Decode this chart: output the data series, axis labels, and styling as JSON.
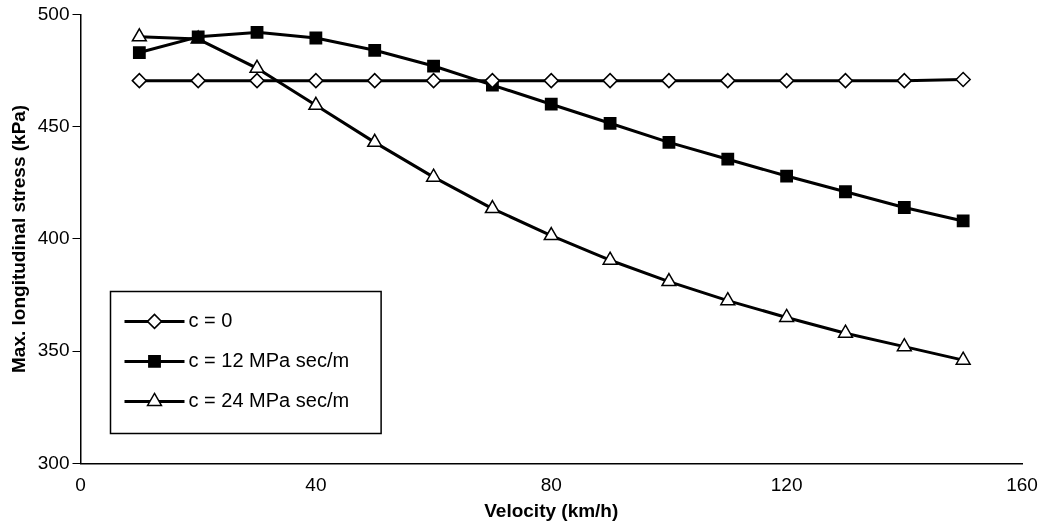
{
  "chart_data": {
    "type": "line",
    "xlabel": "Velocity (km/h)",
    "ylabel": "Max. longitudinal stress (kPa)",
    "x": [
      10,
      20,
      30,
      40,
      50,
      60,
      70,
      80,
      90,
      100,
      110,
      120,
      130,
      140,
      150
    ],
    "xlim": [
      0,
      160
    ],
    "xticks": [
      0,
      40,
      80,
      120,
      160
    ],
    "ylim": [
      300,
      500
    ],
    "yticks": [
      300,
      350,
      400,
      450,
      500
    ],
    "grid": false,
    "legend": "bottom left",
    "line_style": "solid",
    "series": [
      {
        "name": "c = 0",
        "color": "#000000",
        "marker": "diamond",
        "values": [
          470.5,
          470.5,
          470.5,
          470.5,
          470.5,
          470.5,
          470.5,
          470.5,
          470.5,
          470.5,
          470.5,
          470.5,
          470.5,
          470.5,
          471
        ]
      },
      {
        "name": "c = 12 MPa sec/m",
        "color": "#000000",
        "marker": "square",
        "values": [
          483,
          490,
          492,
          489.5,
          484,
          477,
          468.5,
          460,
          451.5,
          443,
          435.5,
          428,
          421,
          414,
          408
        ]
      },
      {
        "name": "c = 24 MPa sec/m",
        "color": "#000000",
        "marker": "triangle",
        "values": [
          490,
          489,
          476,
          459.5,
          443,
          427.5,
          413.5,
          401.5,
          390.5,
          381,
          372.5,
          365,
          358,
          352,
          346
        ]
      }
    ]
  }
}
